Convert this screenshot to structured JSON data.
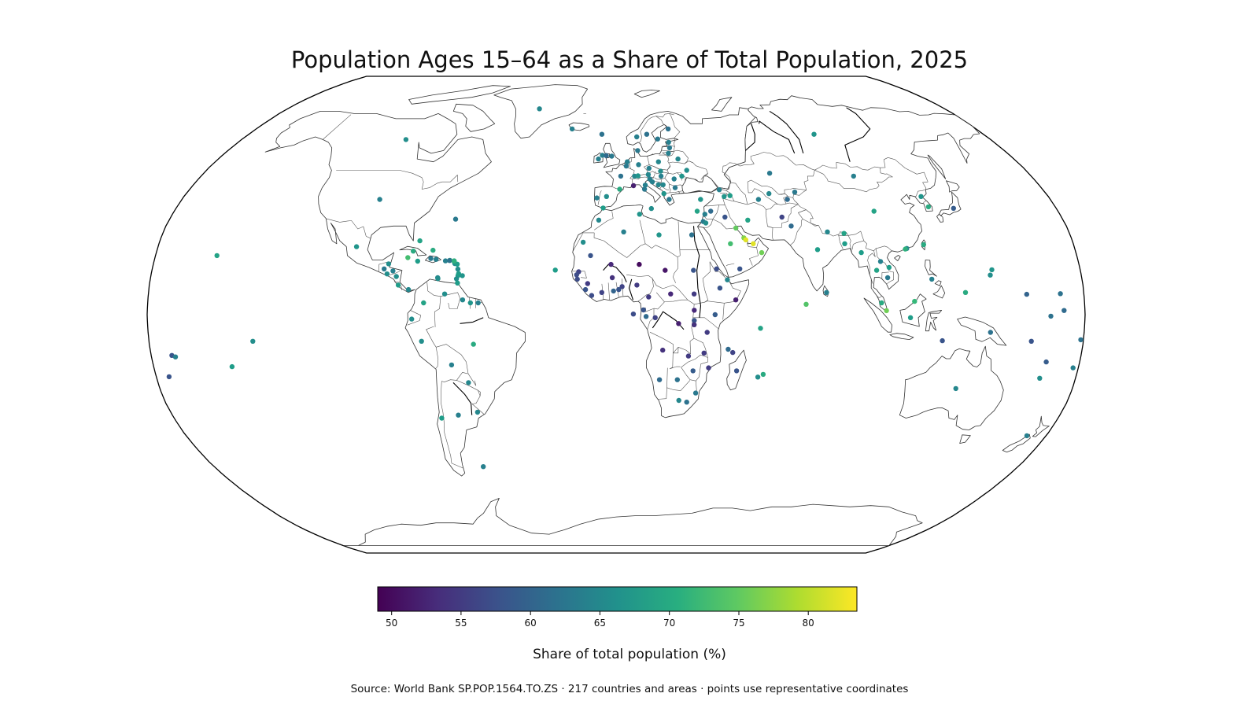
{
  "title": "Population Ages 15–64 as a Share of Total Population, 2025",
  "source_note": "Source: World Bank SP.POP.1564.TO.ZS · 217 countries and areas · points use representative coordinates",
  "chart_data": {
    "type": "scatter",
    "projection": "robinson",
    "colormap": "viridis",
    "colorbar": {
      "label": "Share of total population (%)",
      "range": [
        49,
        83.5
      ],
      "ticks": [
        50,
        55,
        60,
        65,
        70,
        75,
        80
      ],
      "tick_labels": [
        "50",
        "55",
        "60",
        "65",
        "70",
        "75",
        "80"
      ],
      "orientation": "horizontal",
      "placement": "bottom"
    },
    "points": [
      {
        "lon": -42,
        "lat": 72,
        "value": 65
      },
      {
        "lon": -22,
        "lat": 64,
        "value": 64
      },
      {
        "lon": -8,
        "lat": 53,
        "value": 64
      },
      {
        "lon": -2,
        "lat": 54,
        "value": 63
      },
      {
        "lon": 2,
        "lat": 47,
        "value": 62
      },
      {
        "lon": -4,
        "lat": 40,
        "value": 66
      },
      {
        "lon": -8,
        "lat": 39.5,
        "value": 64
      },
      {
        "lon": 12,
        "lat": 42.5,
        "value": 63
      },
      {
        "lon": 10,
        "lat": 51,
        "value": 64
      },
      {
        "lon": 5,
        "lat": 52,
        "value": 64
      },
      {
        "lon": 4.5,
        "lat": 50.5,
        "value": 63
      },
      {
        "lon": 8,
        "lat": 47,
        "value": 65
      },
      {
        "lon": 14,
        "lat": 47.5,
        "value": 65
      },
      {
        "lon": 19,
        "lat": 52,
        "value": 65
      },
      {
        "lon": 15,
        "lat": 62,
        "value": 62
      },
      {
        "lon": 10,
        "lat": 61,
        "value": 64
      },
      {
        "lon": 26,
        "lat": 64,
        "value": 62
      },
      {
        "lon": 10,
        "lat": 56,
        "value": 63
      },
      {
        "lon": 25,
        "lat": 59,
        "value": 64
      },
      {
        "lon": 25,
        "lat": 57,
        "value": 63
      },
      {
        "lon": 24,
        "lat": 55,
        "value": 64
      },
      {
        "lon": 28,
        "lat": 53,
        "value": 65
      },
      {
        "lon": 31,
        "lat": 49,
        "value": 66
      },
      {
        "lon": 25,
        "lat": 46,
        "value": 64
      },
      {
        "lon": 25,
        "lat": 43,
        "value": 63
      },
      {
        "lon": 22,
        "lat": 39,
        "value": 63
      },
      {
        "lon": 20,
        "lat": 44,
        "value": 65
      },
      {
        "lon": 20,
        "lat": 41,
        "value": 67
      },
      {
        "lon": 18,
        "lat": 44,
        "value": 65
      },
      {
        "lon": 15.5,
        "lat": 45,
        "value": 64
      },
      {
        "lon": 19.5,
        "lat": 47,
        "value": 64
      },
      {
        "lon": 14.5,
        "lat": 49.7,
        "value": 64
      },
      {
        "lon": 19.5,
        "lat": 48.7,
        "value": 66
      },
      {
        "lon": 14.5,
        "lat": 46,
        "value": 64
      },
      {
        "lon": 28.5,
        "lat": 47,
        "value": 67
      },
      {
        "lon": 35,
        "lat": 39,
        "value": 67
      },
      {
        "lon": 33,
        "lat": 35,
        "value": 69
      },
      {
        "lon": 14.4,
        "lat": 35.9,
        "value": 66
      },
      {
        "lon": 12.4,
        "lat": 43.9,
        "value": 64
      },
      {
        "lon": 1.5,
        "lat": 42.5,
        "value": 70
      },
      {
        "lon": 7.4,
        "lat": 43.7,
        "value": 52
      },
      {
        "lon": 9.5,
        "lat": 47.1,
        "value": 67
      },
      {
        "lon": -6.3,
        "lat": 54.3,
        "value": 64
      },
      {
        "lon": -5.3,
        "lat": 36.1,
        "value": 68
      },
      {
        "lon": -7,
        "lat": 62,
        "value": 62
      },
      {
        "lon": -4.5,
        "lat": 54.2,
        "value": 61
      },
      {
        "lon": 20,
        "lat": 60.2,
        "value": 63
      },
      {
        "lon": 105,
        "lat": 35,
        "value": 69
      },
      {
        "lon": 138,
        "lat": 36,
        "value": 59
      },
      {
        "lon": 128,
        "lat": 36.5,
        "value": 70
      },
      {
        "lon": 127,
        "lat": 40,
        "value": 67
      },
      {
        "lon": 103,
        "lat": 47,
        "value": 64
      },
      {
        "lon": 97,
        "lat": 62,
        "value": 67
      },
      {
        "lon": 67,
        "lat": 48,
        "value": 63
      },
      {
        "lon": 64,
        "lat": 41,
        "value": 65
      },
      {
        "lon": 59,
        "lat": 39,
        "value": 64
      },
      {
        "lon": 75,
        "lat": 41.5,
        "value": 63
      },
      {
        "lon": 71,
        "lat": 39,
        "value": 61
      },
      {
        "lon": 67,
        "lat": 33,
        "value": 56
      },
      {
        "lon": 70,
        "lat": 30,
        "value": 61
      },
      {
        "lon": 79,
        "lat": 22,
        "value": 68
      },
      {
        "lon": 84,
        "lat": 28,
        "value": 65
      },
      {
        "lon": 90.5,
        "lat": 27.5,
        "value": 69
      },
      {
        "lon": 90,
        "lat": 24,
        "value": 68
      },
      {
        "lon": 81,
        "lat": 7.5,
        "value": 64
      },
      {
        "lon": 73,
        "lat": 3.5,
        "value": 74
      },
      {
        "lon": 96,
        "lat": 21,
        "value": 68
      },
      {
        "lon": 101,
        "lat": 15,
        "value": 69
      },
      {
        "lon": 105,
        "lat": 12.5,
        "value": 63
      },
      {
        "lon": 103,
        "lat": 18,
        "value": 64
      },
      {
        "lon": 106,
        "lat": 16,
        "value": 68
      },
      {
        "lon": 102,
        "lat": 4,
        "value": 70
      },
      {
        "lon": 103.8,
        "lat": 1.35,
        "value": 76
      },
      {
        "lon": 114.7,
        "lat": 4.5,
        "value": 72
      },
      {
        "lon": 122,
        "lat": 12,
        "value": 64
      },
      {
        "lon": 121,
        "lat": 23.7,
        "value": 70
      },
      {
        "lon": 114.1,
        "lat": 22.4,
        "value": 65
      },
      {
        "lon": 113.5,
        "lat": 22.2,
        "value": 71
      },
      {
        "lon": 113,
        "lat": -1,
        "value": 68
      },
      {
        "lon": 125.7,
        "lat": -8.8,
        "value": 58
      },
      {
        "lon": 144,
        "lat": -6,
        "value": 62
      },
      {
        "lon": 134,
        "lat": -25,
        "value": 65
      },
      {
        "lon": 172,
        "lat": -41,
        "value": 64
      },
      {
        "lon": 160,
        "lat": -9,
        "value": 58
      },
      {
        "lon": 167,
        "lat": -16,
        "value": 59
      },
      {
        "lon": 178,
        "lat": -18,
        "value": 64
      },
      {
        "lon": 172,
        "lat": 1.4,
        "value": 61
      },
      {
        "lon": 171,
        "lat": 7.1,
        "value": 62
      },
      {
        "lon": 158,
        "lat": 6.9,
        "value": 60
      },
      {
        "lon": 134.5,
        "lat": 7.5,
        "value": 70
      },
      {
        "lon": 144.8,
        "lat": 13.4,
        "value": 66
      },
      {
        "lon": 145.7,
        "lat": 15.2,
        "value": 67
      },
      {
        "lon": 166.9,
        "lat": -0.5,
        "value": 62
      },
      {
        "lon": 179,
        "lat": -8.5,
        "value": 62
      },
      {
        "lon": -172,
        "lat": -13.8,
        "value": 58
      },
      {
        "lon": -170.7,
        "lat": -14.3,
        "value": 64
      },
      {
        "lon": -175,
        "lat": -21,
        "value": 58
      },
      {
        "lon": -149.5,
        "lat": -17.6,
        "value": 68
      },
      {
        "lon": 166,
        "lat": -21.5,
        "value": 66
      },
      {
        "lon": 53,
        "lat": 32,
        "value": 69
      },
      {
        "lon": 44,
        "lat": 33,
        "value": 58
      },
      {
        "lon": 38.5,
        "lat": 35,
        "value": 61
      },
      {
        "lon": 36,
        "lat": 34,
        "value": 64
      },
      {
        "lon": 35,
        "lat": 31.5,
        "value": 63
      },
      {
        "lon": 36,
        "lat": 31,
        "value": 66
      },
      {
        "lon": 45,
        "lat": 24,
        "value": 73
      },
      {
        "lon": 47.8,
        "lat": 29.3,
        "value": 75
      },
      {
        "lon": 50.5,
        "lat": 26,
        "value": 77
      },
      {
        "lon": 51.2,
        "lat": 25.3,
        "value": 82
      },
      {
        "lon": 54,
        "lat": 24,
        "value": 82
      },
      {
        "lon": 57,
        "lat": 21,
        "value": 76
      },
      {
        "lon": 48,
        "lat": 15.5,
        "value": 58
      },
      {
        "lon": 45,
        "lat": 40,
        "value": 67
      },
      {
        "lon": 43.5,
        "lat": 42.3,
        "value": 64
      },
      {
        "lon": 47.5,
        "lat": 40.3,
        "value": 68
      },
      {
        "lon": 3,
        "lat": 28,
        "value": 64
      },
      {
        "lon": -7,
        "lat": 32,
        "value": 65
      },
      {
        "lon": 9.5,
        "lat": 34,
        "value": 67
      },
      {
        "lon": 17,
        "lat": 27,
        "value": 67
      },
      {
        "lon": 30,
        "lat": 27,
        "value": 62
      },
      {
        "lon": 30,
        "lat": 15,
        "value": 58
      },
      {
        "lon": 30,
        "lat": 7,
        "value": 55
      },
      {
        "lon": 19,
        "lat": 15,
        "value": 51
      },
      {
        "lon": 9,
        "lat": 17,
        "value": 50
      },
      {
        "lon": -2,
        "lat": 17,
        "value": 53
      },
      {
        "lon": -10,
        "lat": 20,
        "value": 58
      },
      {
        "lon": -13,
        "lat": 24.5,
        "value": 66
      },
      {
        "lon": -14.5,
        "lat": 14.5,
        "value": 56
      },
      {
        "lon": -15.3,
        "lat": 13.5,
        "value": 57
      },
      {
        "lon": -15,
        "lat": 12,
        "value": 57
      },
      {
        "lon": -11,
        "lat": 10.5,
        "value": 55
      },
      {
        "lon": -11.8,
        "lat": 8.5,
        "value": 58
      },
      {
        "lon": -9.4,
        "lat": 6.5,
        "value": 57
      },
      {
        "lon": -5.5,
        "lat": 7.5,
        "value": 56
      },
      {
        "lon": -1.5,
        "lat": 12.5,
        "value": 54
      },
      {
        "lon": -1,
        "lat": 8,
        "value": 60
      },
      {
        "lon": 1,
        "lat": 8.5,
        "value": 58
      },
      {
        "lon": 2.3,
        "lat": 9.5,
        "value": 56
      },
      {
        "lon": 8,
        "lat": 10,
        "value": 55
      },
      {
        "lon": 12.5,
        "lat": 6,
        "value": 55
      },
      {
        "lon": 21,
        "lat": 7,
        "value": 53
      },
      {
        "lon": 10.5,
        "lat": 1.6,
        "value": 58
      },
      {
        "lon": 11.5,
        "lat": -0.6,
        "value": 61
      },
      {
        "lon": 15,
        "lat": -1,
        "value": 56
      },
      {
        "lon": 24,
        "lat": -3,
        "value": 52
      },
      {
        "lon": 30,
        "lat": 1.5,
        "value": 53
      },
      {
        "lon": 30,
        "lat": -2,
        "value": 58
      },
      {
        "lon": 30,
        "lat": -3.4,
        "value": 54
      },
      {
        "lon": 38,
        "lat": 0,
        "value": 59
      },
      {
        "lon": 35,
        "lat": -6,
        "value": 55
      },
      {
        "lon": 40,
        "lat": 9,
        "value": 58
      },
      {
        "lon": 39,
        "lat": 15.5,
        "value": 57
      },
      {
        "lon": 43,
        "lat": 11.8,
        "value": 65
      },
      {
        "lon": 46,
        "lat": 5,
        "value": 52
      },
      {
        "lon": 18,
        "lat": -12,
        "value": 54
      },
      {
        "lon": 28,
        "lat": -14,
        "value": 55
      },
      {
        "lon": 34,
        "lat": -13,
        "value": 55
      },
      {
        "lon": 36,
        "lat": -18,
        "value": 55
      },
      {
        "lon": 30,
        "lat": -19,
        "value": 59
      },
      {
        "lon": 24,
        "lat": -22,
        "value": 62
      },
      {
        "lon": 17,
        "lat": -22,
        "value": 61
      },
      {
        "lon": 25,
        "lat": -29,
        "value": 65
      },
      {
        "lon": 31.5,
        "lat": -26.5,
        "value": 63
      },
      {
        "lon": 28.2,
        "lat": -29.6,
        "value": 62
      },
      {
        "lon": 47,
        "lat": -19,
        "value": 58
      },
      {
        "lon": 43.3,
        "lat": -11.7,
        "value": 61
      },
      {
        "lon": 57.5,
        "lat": -20.2,
        "value": 70
      },
      {
        "lon": 55.5,
        "lat": -4.6,
        "value": 69
      },
      {
        "lon": 55.5,
        "lat": -21.1,
        "value": 66
      },
      {
        "lon": 45.1,
        "lat": -12.8,
        "value": 56
      },
      {
        "lon": -23.6,
        "lat": 15.1,
        "value": 68
      },
      {
        "lon": 6.6,
        "lat": 0.2,
        "value": 57
      },
      {
        "lon": -101,
        "lat": 60,
        "value": 66
      },
      {
        "lon": -98,
        "lat": 39,
        "value": 64
      },
      {
        "lon": -102,
        "lat": 23,
        "value": 67
      },
      {
        "lon": -90,
        "lat": 15.5,
        "value": 63
      },
      {
        "lon": -88.7,
        "lat": 13.8,
        "value": 66
      },
      {
        "lon": -86.5,
        "lat": 14.8,
        "value": 64
      },
      {
        "lon": -85,
        "lat": 12.9,
        "value": 66
      },
      {
        "lon": -84,
        "lat": 10,
        "value": 68
      },
      {
        "lon": -80,
        "lat": 8.5,
        "value": 65
      },
      {
        "lon": -88.5,
        "lat": 17.2,
        "value": 66
      },
      {
        "lon": -79.5,
        "lat": 21.5,
        "value": 70
      },
      {
        "lon": -77.3,
        "lat": 18.1,
        "value": 68
      },
      {
        "lon": -72.3,
        "lat": 19,
        "value": 63
      },
      {
        "lon": -70.2,
        "lat": 18.7,
        "value": 64
      },
      {
        "lon": -66.5,
        "lat": 18.2,
        "value": 64
      },
      {
        "lon": -77.4,
        "lat": 25,
        "value": 69
      },
      {
        "lon": -64.7,
        "lat": 32.3,
        "value": 63
      },
      {
        "lon": -81.3,
        "lat": 19.3,
        "value": 73
      },
      {
        "lon": -71.8,
        "lat": 21.8,
        "value": 70
      },
      {
        "lon": -64.8,
        "lat": 18.4,
        "value": 71
      },
      {
        "lon": -64.9,
        "lat": 18.3,
        "value": 62
      },
      {
        "lon": -63.1,
        "lat": 18.2,
        "value": 70
      },
      {
        "lon": -63.1,
        "lat": 18,
        "value": 68
      },
      {
        "lon": -62.8,
        "lat": 17.3,
        "value": 66
      },
      {
        "lon": -61.8,
        "lat": 17.1,
        "value": 68
      },
      {
        "lon": -61.4,
        "lat": 15.4,
        "value": 66
      },
      {
        "lon": -61,
        "lat": 13.9,
        "value": 68
      },
      {
        "lon": -61.2,
        "lat": 13.2,
        "value": 68
      },
      {
        "lon": -59.5,
        "lat": 13.2,
        "value": 67
      },
      {
        "lon": -61.7,
        "lat": 12.1,
        "value": 66
      },
      {
        "lon": -61.2,
        "lat": 10.7,
        "value": 68
      },
      {
        "lon": -69,
        "lat": 12.5,
        "value": 65
      },
      {
        "lon": -68.9,
        "lat": 12.2,
        "value": 66
      },
      {
        "lon": -63.1,
        "lat": 18.1,
        "value": 71
      },
      {
        "lon": -66,
        "lat": 7,
        "value": 66
      },
      {
        "lon": -74,
        "lat": 4,
        "value": 69
      },
      {
        "lon": -78.5,
        "lat": -1.5,
        "value": 66
      },
      {
        "lon": -75,
        "lat": -9,
        "value": 66
      },
      {
        "lon": -55,
        "lat": -10,
        "value": 70
      },
      {
        "lon": -64,
        "lat": -17,
        "value": 64
      },
      {
        "lon": -58,
        "lat": -23,
        "value": 65
      },
      {
        "lon": -71,
        "lat": -35,
        "value": 68
      },
      {
        "lon": -64,
        "lat": -34,
        "value": 64
      },
      {
        "lon": -56,
        "lat": -33,
        "value": 65
      },
      {
        "lon": -59,
        "lat": 5,
        "value": 65
      },
      {
        "lon": -56,
        "lat": 4,
        "value": 67
      },
      {
        "lon": -53,
        "lat": 4,
        "value": 64
      },
      {
        "lon": -59.5,
        "lat": -51.7,
        "value": 64
      },
      {
        "lon": -156,
        "lat": 20,
        "value": 69
      },
      {
        "lon": -140,
        "lat": -9,
        "value": 66
      }
    ]
  }
}
